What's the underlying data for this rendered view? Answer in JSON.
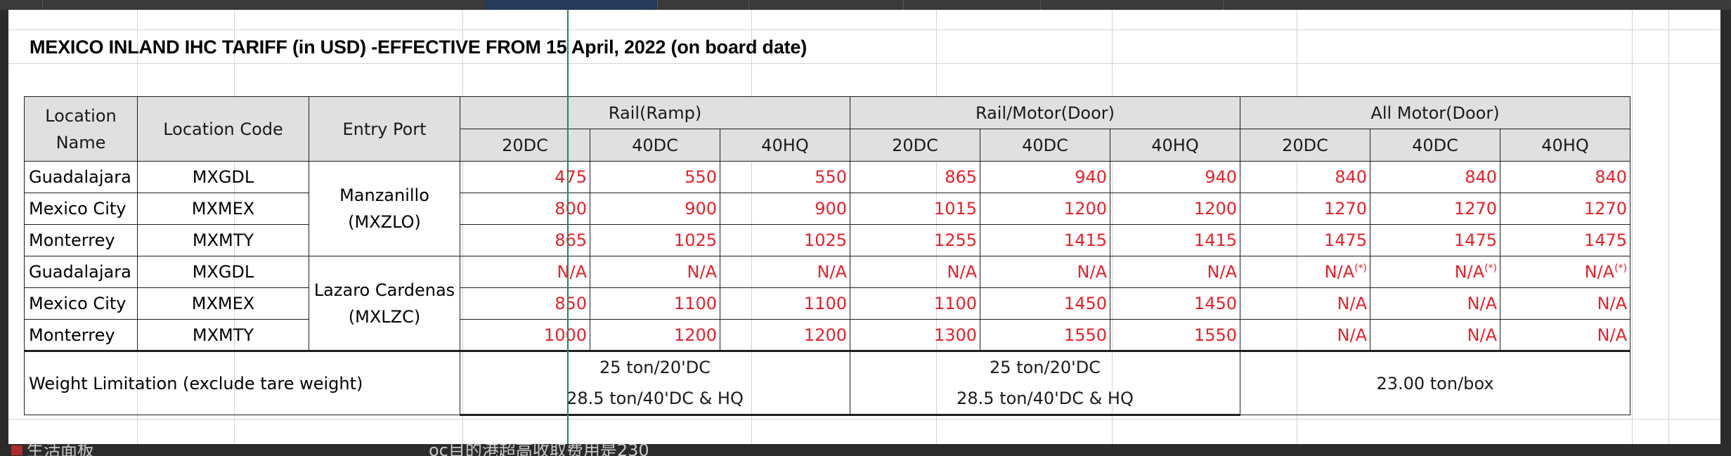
{
  "title": "MEXICO INLAND IHC TARIFF (in USD) -EFFECTIVE FROM 15 April, 2022 (on board date)",
  "headers": {
    "location_name": "Location Name",
    "location_code": "Location  Code",
    "entry_port": "Entry Port",
    "groups": [
      "Rail(Ramp)",
      "Rail/Motor(Door)",
      "All Motor(Door)"
    ],
    "sizes": [
      "20DC",
      "40DC",
      "40HQ"
    ]
  },
  "rows": [
    {
      "name": "Guadalajara",
      "code": "MXGDL",
      "values": [
        "475",
        "550",
        "550",
        "865",
        "940",
        "940",
        "840",
        "840",
        "840"
      ]
    },
    {
      "name": "Mexico City",
      "code": "MXMEX",
      "values": [
        "800",
        "900",
        "900",
        "1015",
        "1200",
        "1200",
        "1270",
        "1270",
        "1270"
      ]
    },
    {
      "name": "Monterrey",
      "code": "MXMTY",
      "values": [
        "865",
        "1025",
        "1025",
        "1255",
        "1415",
        "1415",
        "1475",
        "1475",
        "1475"
      ]
    },
    {
      "name": "Guadalajara",
      "code": "MXGDL",
      "values": [
        "N/A",
        "N/A",
        "N/A",
        "N/A",
        "N/A",
        "N/A",
        "N/A",
        "N/A",
        "N/A"
      ]
    },
    {
      "name": "Mexico City",
      "code": "MXMEX",
      "values": [
        "850",
        "1100",
        "1100",
        "1100",
        "1450",
        "1450",
        "N/A",
        "N/A",
        "N/A"
      ]
    },
    {
      "name": "Monterrey",
      "code": "MXMTY",
      "values": [
        "1000",
        "1200",
        "1200",
        "1300",
        "1550",
        "1550",
        "N/A",
        "N/A",
        "N/A"
      ]
    }
  ],
  "ports": [
    {
      "line1": "Manzanillo",
      "line2": "(MXZLO)"
    },
    {
      "line1": "Lazaro Cardenas",
      "line2": "(MXLZC)"
    }
  ],
  "footnote_mark": "(*)",
  "weight": {
    "label": "Weight Limitation (exclude tare weight)",
    "rail_ramp": [
      "25 ton/20'DC",
      "28.5 ton/40'DC & HQ"
    ],
    "rail_motor": [
      "25 ton/20'DC",
      "28.5 ton/40'DC & HQ"
    ],
    "all_motor": "23.00 ton/box"
  },
  "background_text": {
    "bottom_left": "生活面板",
    "bottom_mid": "oc目的港超高收取费用是230"
  },
  "colors": {
    "value_red": "#e8202a",
    "header_gray": "#e0e0e0",
    "cursor_green": "#1a8a55"
  }
}
